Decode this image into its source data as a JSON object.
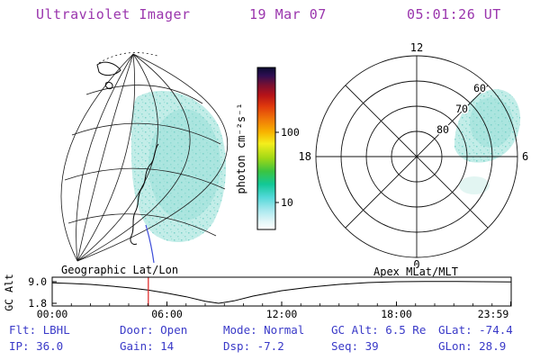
{
  "header": {
    "title": "Ultraviolet Imager",
    "date": "19 Mar 07",
    "time": "05:01:26 UT"
  },
  "colors": {
    "header_text": "#9a35ad",
    "status_text": "#3a3ac8",
    "time_marker": "#e03030",
    "emission_base": "#c3ede8",
    "emission_core": "#abe5df",
    "plot_lines": "#111111"
  },
  "colorbar": {
    "label": "photon cm⁻²s⁻¹",
    "tick_labels": [
      "100",
      "10"
    ],
    "scale": "log"
  },
  "polar": {
    "mlt_top": "12",
    "mlt_left": "18",
    "mlt_right": "6",
    "mlt_bottom": "0",
    "lat_labels": [
      "60",
      "70",
      "80"
    ]
  },
  "strip": {
    "ylabel": "GC Alt",
    "ytick_top": "9.0",
    "ytick_bottom": "1.8",
    "caption_left": "Geographic Lat/Lon",
    "caption_right": "Apex MLat/MLT",
    "xticks": [
      "00:00",
      "06:00",
      "12:00",
      "18:00",
      "23:59"
    ]
  },
  "status": {
    "row1": [
      "Flt: LBHL",
      "Door: Open",
      "Mode: Normal",
      "GC Alt: 6.5 Re",
      "GLat: -74.4"
    ],
    "row2": [
      "IP: 36.0",
      "Gain: 14",
      "Dsp: -7.2",
      "Seq: 39",
      "GLon: 28.9"
    ]
  },
  "chart_data": [
    {
      "type": "heatmap",
      "title": "Geographic Lat/Lon",
      "description": "UV image projected on geographic lat/lon globe grid; diffuse emission patch of roughly 10 photon cm-2 s-1 covering the dayside limb (right side of disk)",
      "colorbar": {
        "label": "photon cm⁻²s⁻¹",
        "scale": "log",
        "ticks": [
          10,
          100
        ]
      }
    },
    {
      "type": "heatmap",
      "title": "Apex MLat/MLT",
      "spokes_mlt": [
        0,
        6,
        12,
        18
      ],
      "rings_mlat": [
        80,
        70,
        60,
        50
      ],
      "emission": {
        "mlt_range": [
          5,
          9
        ],
        "mlat_range": [
          58,
          78
        ],
        "approx_value_photon_cm2_s": 10
      }
    },
    {
      "type": "line",
      "title": "GC Alt",
      "ylabel": "GC Alt",
      "yticks": [
        9.0,
        1.8
      ],
      "xticks": [
        "00:00",
        "06:00",
        "12:00",
        "18:00",
        "23:59"
      ],
      "x_hours": [
        0,
        1,
        2,
        3,
        4,
        5,
        6,
        7,
        8,
        8.7,
        9.5,
        10.5,
        12,
        13.5,
        15,
        16.5,
        18,
        19.5,
        21,
        22.5,
        23.98
      ],
      "y_re": [
        8.6,
        8.4,
        8.1,
        7.6,
        7.0,
        6.2,
        5.2,
        4.0,
        2.5,
        1.8,
        2.6,
        4.2,
        6.0,
        7.2,
        8.1,
        8.7,
        9.0,
        9.1,
        9.1,
        9.0,
        8.9
      ],
      "marker_time_ut": "05:01:26"
    }
  ]
}
